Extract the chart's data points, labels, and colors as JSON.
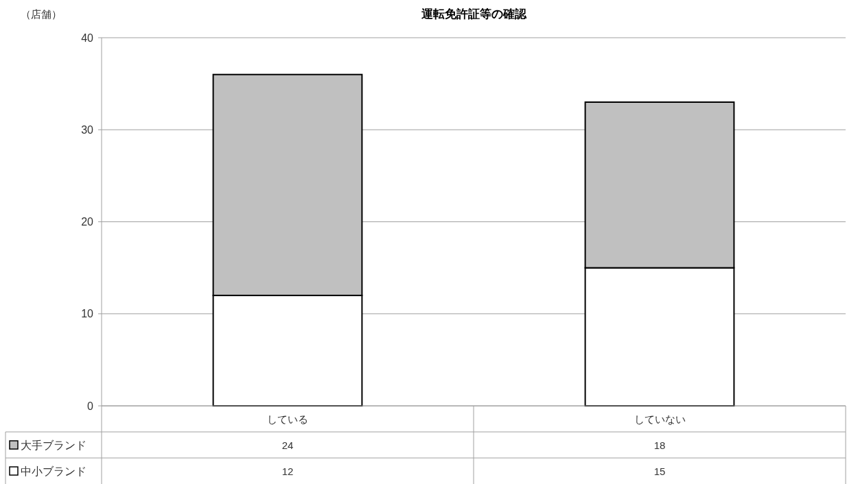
{
  "chart_data": {
    "type": "bar",
    "title": "運転免許証等の確認",
    "ylabel": "（店舗）",
    "categories": [
      "している",
      "していない"
    ],
    "series": [
      {
        "name": "中小ブランド",
        "color": "#ffffff",
        "values": [
          12,
          15
        ]
      },
      {
        "name": "大手ブランド",
        "color": "#c0c0c0",
        "values": [
          24,
          18
        ]
      }
    ],
    "stacked": true,
    "ylim": [
      0,
      40
    ],
    "yticks": [
      0,
      10,
      20,
      30,
      40
    ],
    "grid": "y",
    "data_labels": true,
    "legend": "bottom left"
  }
}
